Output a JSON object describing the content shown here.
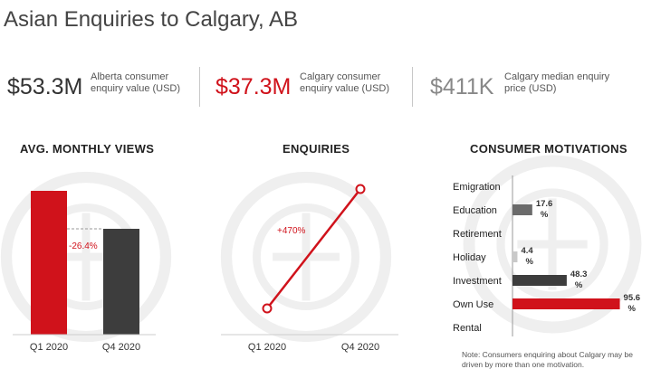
{
  "title": "Asian Enquiries to Calgary, AB",
  "stats": [
    {
      "value": "$53.3M",
      "label": "Alberta consumer enquiry value (USD)",
      "color": "#333333"
    },
    {
      "value": "$37.3M",
      "label": "Calgary consumer enquiry value (USD)",
      "color": "#d0121b"
    },
    {
      "value": "$411K",
      "label": "Calgary median enquiry price (USD)",
      "color": "#888888"
    }
  ],
  "sections": {
    "views_title": "AVG. MONTHLY VIEWS",
    "enquiries_title": "ENQUIRIES",
    "motivations_title": "CONSUMER MOTIVATIONS"
  },
  "note": "Note: Consumers enquiring about Calgary may be driven by more than one motivation.",
  "colors": {
    "accent": "#d0121b",
    "dark": "#3d3d3d",
    "light": "#c9c9c9",
    "watermark": "#efefef"
  },
  "chart_data": [
    {
      "type": "bar",
      "title": "AVG. MONTHLY VIEWS",
      "categories": [
        "Q1 2020",
        "Q4 2020"
      ],
      "values": [
        100,
        73.6
      ],
      "colors": [
        "#d0121b",
        "#3d3d3d"
      ],
      "annotation": "-26.4%"
    },
    {
      "type": "line",
      "title": "ENQUIRIES",
      "x": [
        "Q1 2020",
        "Q4 2020"
      ],
      "y": [
        100,
        570
      ],
      "annotation": "+470%"
    },
    {
      "type": "bar",
      "orientation": "horizontal",
      "title": "CONSUMER MOTIVATIONS",
      "categories": [
        "Emigration",
        "Education",
        "Retirement",
        "Holiday",
        "Investment",
        "Own Use",
        "Rental"
      ],
      "values": [
        null,
        17.6,
        null,
        4.4,
        48.3,
        95.6,
        null
      ],
      "labels": [
        "",
        "17.6 %",
        "",
        "4.4 %",
        "48.3 %",
        "95.6 %",
        ""
      ],
      "colors": [
        "",
        "#6b6b6b",
        "",
        "#c9c9c9",
        "#3d3d3d",
        "#d0121b",
        ""
      ],
      "xlim": [
        0,
        100
      ]
    }
  ]
}
